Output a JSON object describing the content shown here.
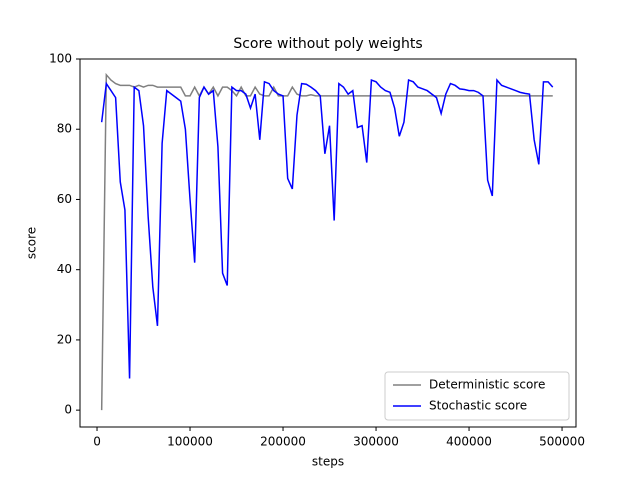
{
  "chart_data": {
    "type": "line",
    "title": "Score without poly weights",
    "xlabel": "steps",
    "ylabel": "score",
    "x": [
      5000,
      10000,
      15000,
      20000,
      25000,
      30000,
      35000,
      40000,
      45000,
      50000,
      55000,
      60000,
      65000,
      70000,
      75000,
      80000,
      85000,
      90000,
      95000,
      100000,
      105000,
      110000,
      115000,
      120000,
      125000,
      130000,
      135000,
      140000,
      145000,
      150000,
      155000,
      160000,
      165000,
      170000,
      175000,
      180000,
      185000,
      190000,
      195000,
      200000,
      205000,
      210000,
      215000,
      220000,
      225000,
      230000,
      235000,
      240000,
      245000,
      250000,
      255000,
      260000,
      265000,
      270000,
      275000,
      280000,
      285000,
      290000,
      295000,
      300000,
      305000,
      310000,
      315000,
      320000,
      325000,
      330000,
      335000,
      340000,
      345000,
      350000,
      355000,
      360000,
      365000,
      370000,
      375000,
      380000,
      385000,
      390000,
      395000,
      400000,
      405000,
      410000,
      415000,
      420000,
      425000,
      430000,
      435000,
      440000,
      445000,
      450000,
      455000,
      460000,
      465000,
      470000,
      475000,
      480000,
      485000,
      490000
    ],
    "series": [
      {
        "name": "Deterministic score",
        "color": "#808080",
        "values": [
          0,
          95.5,
          94,
          93,
          92.5,
          92.5,
          92.5,
          92,
          92.5,
          92,
          92.5,
          92.5,
          92,
          92,
          92,
          92,
          92,
          92,
          89.5,
          89.5,
          92,
          89.5,
          92,
          90,
          92,
          89.5,
          92,
          92,
          91,
          89.5,
          92,
          89.5,
          89.5,
          92,
          90,
          89.5,
          89.5,
          92,
          89.5,
          89.5,
          89.5,
          92,
          90,
          89.5,
          89.5,
          89.8,
          89.5,
          89.5,
          89.5,
          89.5,
          89.5,
          89.5,
          89.5,
          89.5,
          89.5,
          89.5,
          89.5,
          89.5,
          89.5,
          89.5,
          89.5,
          89.5,
          89.5,
          89.5,
          89.5,
          89.5,
          89.5,
          89.5,
          89.5,
          89.5,
          89.5,
          89.5,
          89.5,
          89.5,
          89.5,
          89.5,
          89.5,
          89.5,
          89.5,
          89.5,
          89.5,
          89.5,
          89.5,
          89.5,
          89.5,
          89.5,
          89.5,
          89.5,
          89.5,
          89.5,
          89.5,
          89.5,
          89.5,
          89.5,
          89.5,
          89.5,
          89.5,
          89.5
        ]
      },
      {
        "name": "Stochastic score",
        "color": "#0000ff",
        "values": [
          82,
          93,
          91,
          89,
          65,
          57,
          9,
          92,
          91,
          81,
          55,
          35,
          24,
          76,
          91,
          90,
          89,
          88,
          80,
          60,
          42,
          89,
          92,
          90,
          91,
          75,
          39,
          35.5,
          92,
          91,
          91,
          90,
          86,
          90,
          77,
          93.5,
          93,
          91,
          90,
          89.5,
          66,
          63,
          84,
          93,
          92.8,
          92,
          91,
          89.5,
          73,
          81,
          54,
          93,
          92,
          90,
          91,
          80.5,
          81,
          70.5,
          94,
          93.5,
          92,
          91,
          90.5,
          86,
          78,
          82,
          94,
          93.5,
          92,
          91.5,
          91,
          90,
          89,
          84.5,
          90,
          93,
          92.5,
          91.5,
          91.3,
          91,
          91,
          90.5,
          89.5,
          65.5,
          61,
          94,
          92.5,
          92,
          91.5,
          91,
          90.5,
          90.2,
          90,
          77,
          70,
          93.5,
          93.5,
          92
        ]
      }
    ],
    "xlim": [
      -18300,
      515000
    ],
    "ylim": [
      -4.8,
      100
    ],
    "xticks": [
      0,
      100000,
      200000,
      300000,
      400000,
      500000
    ],
    "yticks": [
      0,
      20,
      40,
      60,
      80,
      100
    ],
    "legend": "lower right"
  }
}
